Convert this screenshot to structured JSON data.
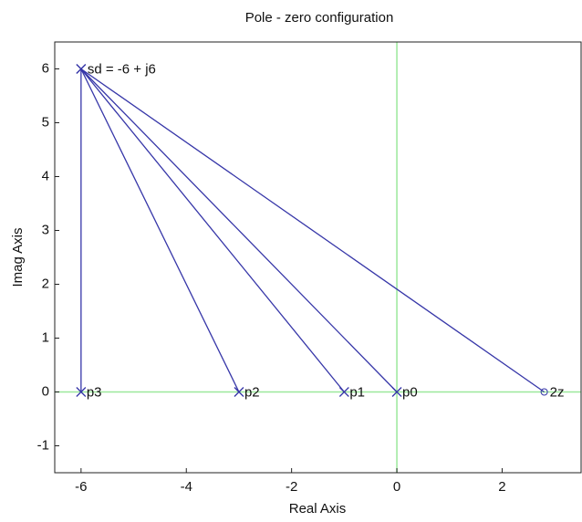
{
  "chart_data": {
    "type": "pole-zero",
    "title": "Pole - zero configuration",
    "xlabel": "Real Axis",
    "ylabel": "Imag Axis",
    "xlim": [
      -6.5,
      3.5
    ],
    "ylim": [
      -1.5,
      6.5
    ],
    "xticks": [
      -6,
      -4,
      -2,
      0,
      2
    ],
    "yticks": [
      -1,
      0,
      1,
      2,
      3,
      4,
      5,
      6
    ],
    "design_point": {
      "label": "sd = -6 + j6",
      "x": -6,
      "y": 6
    },
    "points": [
      {
        "label": "p3",
        "kind": "pole",
        "x": -6,
        "y": 0
      },
      {
        "label": "p2",
        "kind": "pole",
        "x": -3,
        "y": 0
      },
      {
        "label": "p1",
        "kind": "pole",
        "x": -1,
        "y": 0
      },
      {
        "label": "p0",
        "kind": "pole",
        "x": 0,
        "y": 0
      },
      {
        "label": "2z",
        "kind": "zero",
        "x": 2.8,
        "y": 0
      }
    ],
    "line_color": "#3636a8",
    "axis_line_color": "#9be89b"
  }
}
